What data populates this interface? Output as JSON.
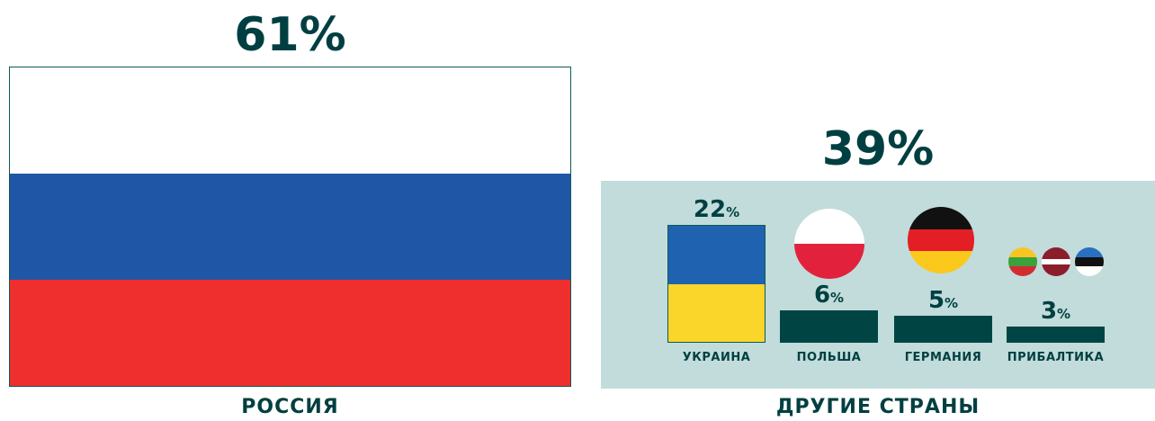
{
  "chart_data": {
    "type": "bar",
    "groups": [
      {
        "name": "РОССИЯ",
        "value": 61,
        "label": "61%"
      },
      {
        "name": "ДРУГИЕ СТРАНЫ",
        "value": 39,
        "label": "39%"
      }
    ],
    "categories": [
      "УКРАИНА",
      "ПОЛЬША",
      "ГЕРМАНИЯ",
      "ПРИБАЛТИКА"
    ],
    "values": [
      22,
      6,
      5,
      3
    ],
    "unit": "%",
    "ylim": [
      0,
      22
    ]
  },
  "colors": {
    "dark_teal": "#003f41",
    "panel_bg": "#c1dcdb",
    "russia": [
      "#ffffff",
      "#1f57a6",
      "#ee2f2d"
    ],
    "ukraine": [
      "#1f63b0",
      "#fad52a"
    ],
    "poland": [
      "#ffffff",
      "#e2223c"
    ],
    "germany": [
      "#111111",
      "#e31e24",
      "#fbc81c"
    ],
    "lithuania": [
      "#fbc521",
      "#3aa13c",
      "#d22c32"
    ],
    "latvia": [
      "#8c1d2b",
      "#ffffff",
      "#8c1d2b"
    ],
    "estonia": [
      "#2a70c1",
      "#111111",
      "#ffffff"
    ]
  },
  "icons": {
    "russia": "russia-flag-icon",
    "ukraine": "ukraine-flag-icon",
    "poland": "poland-flag-icon",
    "germany": "germany-flag-icon",
    "baltics": [
      "lithuania-flag-icon",
      "latvia-flag-icon",
      "estonia-flag-icon"
    ]
  }
}
